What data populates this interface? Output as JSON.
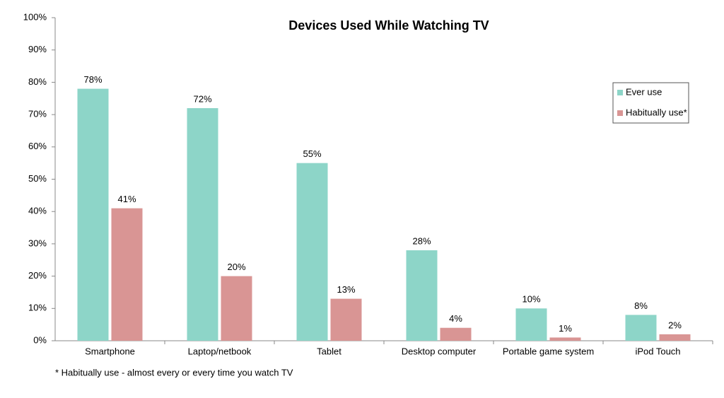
{
  "chart_data": {
    "type": "bar",
    "title": "Devices Used While Watching TV",
    "categories": [
      "Smartphone",
      "Laptop/netbook",
      "Tablet",
      "Desktop computer",
      "Portable game system",
      "iPod Touch"
    ],
    "series": [
      {
        "name": "Ever use",
        "color": "#8dd5c8",
        "values": [
          78,
          72,
          55,
          28,
          10,
          8
        ],
        "value_labels": [
          "78%",
          "72%",
          "55%",
          "28%",
          "10%",
          "8%"
        ]
      },
      {
        "name": "Habitually use*",
        "color": "#d99594",
        "values": [
          41,
          20,
          13,
          4,
          1,
          2
        ],
        "value_labels": [
          "41%",
          "20%",
          "13%",
          "4%",
          "1%",
          "2%"
        ]
      }
    ],
    "ylim": [
      0,
      100
    ],
    "yticks": [
      {
        "value": 0,
        "label": "0%"
      },
      {
        "value": 10,
        "label": "10%"
      },
      {
        "value": 20,
        "label": "20%"
      },
      {
        "value": 30,
        "label": "30%"
      },
      {
        "value": 40,
        "label": "40%"
      },
      {
        "value": 50,
        "label": "50%"
      },
      {
        "value": 60,
        "label": "60%"
      },
      {
        "value": 70,
        "label": "70%"
      },
      {
        "value": 80,
        "label": "80%"
      },
      {
        "value": 90,
        "label": "90%"
      },
      {
        "value": 100,
        "label": "100%"
      }
    ],
    "grid": false,
    "legend": "right",
    "footnote": "* Habitually use - almost every or every time you watch TV"
  }
}
